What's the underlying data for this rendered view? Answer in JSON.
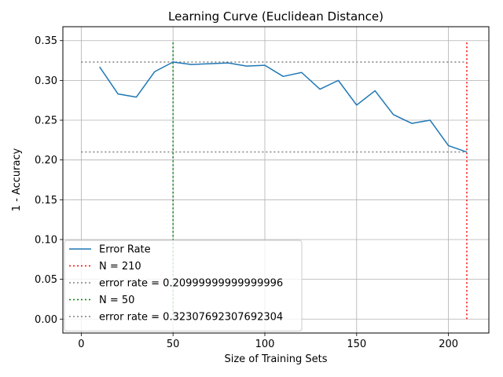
{
  "chart_data": {
    "type": "line",
    "title": "Learning Curve (Euclidean Distance)",
    "xlabel": "Size of Training Sets",
    "ylabel": "1 - Accuracy",
    "xlim": [
      -10,
      222
    ],
    "ylim": [
      -0.0175,
      0.3675
    ],
    "xticks": [
      0,
      50,
      100,
      150,
      200
    ],
    "xtick_labels": [
      "0",
      "50",
      "100",
      "150",
      "200"
    ],
    "yticks": [
      0.0,
      0.05,
      0.1,
      0.15,
      0.2,
      0.25,
      0.3,
      0.35
    ],
    "ytick_labels": [
      "0.00",
      "0.05",
      "0.10",
      "0.15",
      "0.20",
      "0.25",
      "0.30",
      "0.35"
    ],
    "grid": true,
    "legend_position": "lower-left",
    "series": [
      {
        "name": "Error Rate",
        "color": "#1f77b4",
        "style": "solid",
        "x": [
          10,
          20,
          30,
          40,
          50,
          60,
          70,
          80,
          90,
          100,
          110,
          120,
          130,
          140,
          150,
          160,
          170,
          180,
          190,
          200,
          210
        ],
        "values": [
          0.317,
          0.283,
          0.279,
          0.311,
          0.3231,
          0.32,
          0.321,
          0.322,
          0.318,
          0.319,
          0.305,
          0.31,
          0.289,
          0.3,
          0.269,
          0.287,
          0.257,
          0.246,
          0.25,
          0.218,
          0.21
        ]
      }
    ],
    "reference_lines": [
      {
        "name": "N = 210",
        "orientation": "vertical",
        "x": 210,
        "y_from": 0.0,
        "y_to": 0.35,
        "color": "#ff0000",
        "style": "dotted"
      },
      {
        "name": "error rate = 0.20999999999999996",
        "orientation": "horizontal",
        "y": 0.21,
        "x_from": 0,
        "x_to": 210,
        "color": "#808080",
        "style": "dotted"
      },
      {
        "name": "N = 50",
        "orientation": "vertical",
        "x": 50,
        "y_from": 0.0,
        "y_to": 0.35,
        "color": "#008000",
        "style": "dotted"
      },
      {
        "name": "error rate = 0.32307692307692304",
        "orientation": "horizontal",
        "y": 0.3231,
        "x_from": 0,
        "x_to": 210,
        "color": "#808080",
        "style": "dotted"
      }
    ],
    "legend": [
      {
        "label": "Error Rate",
        "color": "#1f77b4",
        "style": "solid"
      },
      {
        "label": "N = 210",
        "color": "#ff0000",
        "style": "dotted"
      },
      {
        "label": "error rate = 0.20999999999999996",
        "color": "#808080",
        "style": "dotted"
      },
      {
        "label": "N = 50",
        "color": "#008000",
        "style": "dotted"
      },
      {
        "label": "error rate = 0.32307692307692304",
        "color": "#808080",
        "style": "dotted"
      }
    ]
  }
}
